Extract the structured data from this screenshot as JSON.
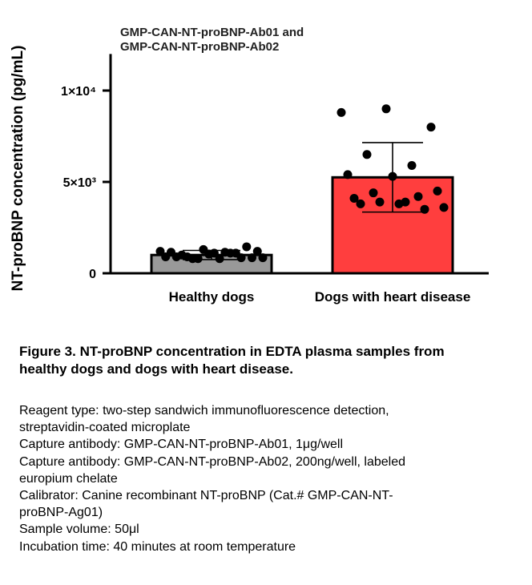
{
  "chart_data": {
    "type": "bar",
    "title_lines": [
      "GMP-CAN-NT-proBNP-Ab01 and",
      "GMP-CAN-NT-proBNP-Ab02"
    ],
    "xlabel": "",
    "ylabel": "NT-proBNP concentration (pg/mL)",
    "ylim": [
      0,
      12000
    ],
    "yticks": [
      {
        "value": 0,
        "label": "0"
      },
      {
        "value": 5000,
        "label": "5×10³"
      },
      {
        "value": 10000,
        "label": "1×10⁴"
      }
    ],
    "grid": false,
    "legend": "none",
    "categories": [
      "Healthy dogs",
      "Dogs with heart disease"
    ],
    "values": [
      1000,
      5250
    ],
    "error_sd": [
      250,
      1900
    ],
    "bar_colors": [
      "#999999",
      "#ff3e3e"
    ],
    "points": [
      [
        1200,
        800,
        1100,
        900,
        1300,
        850,
        1150,
        1050,
        1450,
        900,
        1100,
        850,
        1000,
        800,
        1200,
        900,
        1150,
        850,
        800,
        1100
      ],
      [
        8800,
        9000,
        8000,
        6500,
        5900,
        5400,
        5300,
        4500,
        4400,
        4200,
        4100,
        3800,
        3600,
        3900,
        3500,
        3800,
        3900
      ]
    ]
  },
  "caption": {
    "lines": [
      "Figure 3. NT-proBNP concentration in EDTA plasma samples from",
      "healthy dogs and dogs with heart disease."
    ]
  },
  "details": [
    {
      "lines": [
        "Reagent type: two-step sandwich immunofluorescence detection,",
        "streptavidin-coated microplate"
      ]
    },
    {
      "lines": [
        "Capture antibody: GMP-CAN-NT-proBNP-Ab01, 1μg/well"
      ]
    },
    {
      "lines": [
        "Capture antibody: GMP-CAN-NT-proBNP-Ab02, 200ng/well, labeled",
        "europium chelate"
      ]
    },
    {
      "lines": [
        "Calibrator: Canine recombinant NT-proBNP (Cat.# GMP-CAN-NT-",
        "proBNP-Ag01)"
      ]
    },
    {
      "lines": [
        "Sample volume: 50μl"
      ]
    },
    {
      "lines": [
        "Incubation time: 40 minutes at room temperature"
      ]
    }
  ]
}
